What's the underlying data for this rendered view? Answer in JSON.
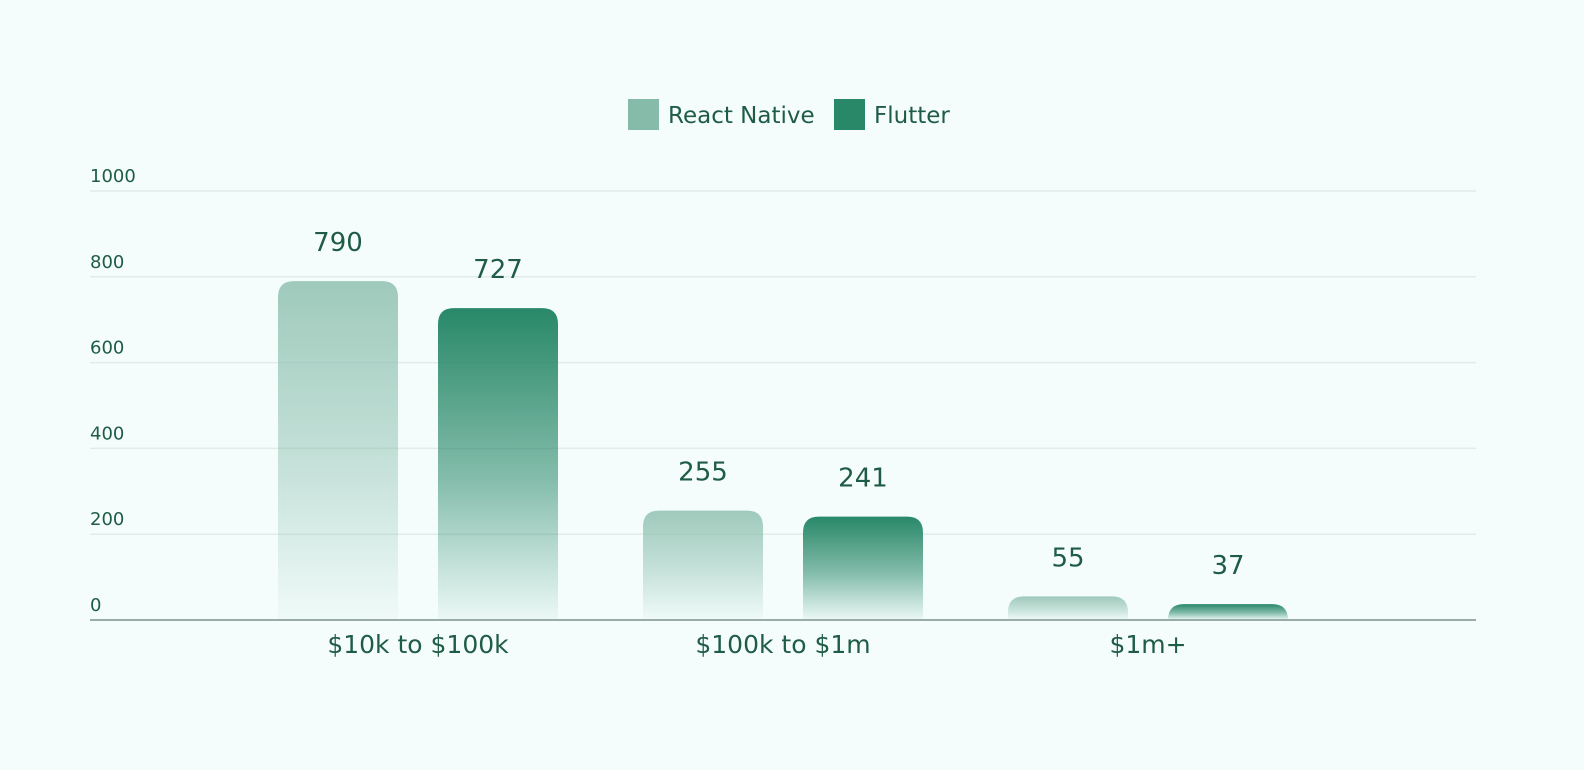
{
  "chart_data": {
    "type": "bar",
    "categories": [
      "$10k to $100k",
      "$100k to $1m",
      "$1m+"
    ],
    "series": [
      {
        "name": "React Native",
        "values": [
          790,
          255,
          55
        ],
        "color": "#86bba9"
      },
      {
        "name": "Flutter",
        "values": [
          727,
          241,
          37
        ],
        "color": "#288868"
      }
    ],
    "ylim": [
      0,
      1000
    ],
    "yticks": [
      0,
      200,
      400,
      600,
      800,
      1000
    ],
    "grid": true,
    "legend": "top-center",
    "colors": {
      "background": "#f4fdfc",
      "text": "#1f5c45",
      "grid": "#e0ecea",
      "axis": "#9aaca6"
    }
  }
}
